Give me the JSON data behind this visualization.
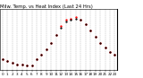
{
  "title": "Milw. Temp. vs Heat Index (Last 24 Hrs)",
  "background_color": "#ffffff",
  "plot_bg": "#ffffff",
  "line_color_red": "#ff0000",
  "line_color_black": "#000000",
  "grid_color": "#888888",
  "y_min": 50,
  "y_max": 90,
  "yticks": [
    55,
    60,
    65,
    70,
    75,
    80,
    85
  ],
  "ytick_labels": [
    "55",
    "60",
    "65",
    "70",
    "75",
    "80",
    "85"
  ],
  "hours": [
    0,
    1,
    2,
    3,
    4,
    5,
    6,
    7,
    8,
    9,
    10,
    11,
    12,
    13,
    14,
    15,
    16,
    17,
    18,
    19,
    20,
    21,
    22,
    23
  ],
  "temp": [
    57,
    56,
    55,
    54,
    54,
    53,
    53,
    57,
    60,
    64,
    68,
    73,
    78,
    82,
    83,
    84,
    83,
    80,
    76,
    72,
    68,
    65,
    62,
    60
  ],
  "heat_index": [
    57,
    56,
    55,
    54,
    54,
    53,
    53,
    57,
    60,
    64,
    68,
    73,
    79,
    83,
    84,
    85,
    83,
    80,
    76,
    72,
    68,
    65,
    62,
    60
  ],
  "title_fontsize": 3.8,
  "tick_fontsize": 3.0,
  "marker_size_red": 1.4,
  "marker_size_black": 1.2
}
